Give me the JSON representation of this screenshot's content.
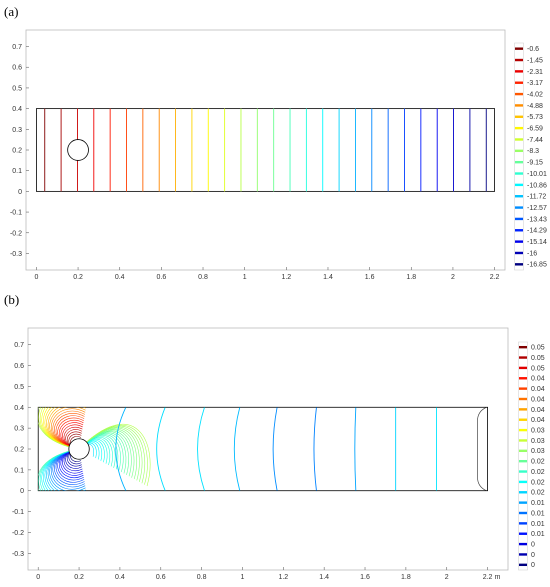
{
  "panels": [
    {
      "label": "(a)",
      "chart_data": {
        "type": "contour",
        "title": "",
        "xlabel": "",
        "ylabel": "",
        "x_unit": "",
        "xlim": [
          -0.05,
          2.25
        ],
        "ylim": [
          -0.38,
          0.78
        ],
        "x_ticks": [
          "0",
          "0.2",
          "0.4",
          "0.6",
          "0.8",
          "1",
          "1.2",
          "1.4",
          "1.6",
          "1.8",
          "2",
          "2.2"
        ],
        "y_ticks": [
          "-0.3",
          "-0.2",
          "-0.1",
          "0",
          "0.1",
          "0.2",
          "0.3",
          "0.4",
          "0.5",
          "0.6",
          "0.7"
        ],
        "domain": {
          "x": [
            0,
            2.2
          ],
          "y": [
            0,
            0.4
          ]
        },
        "obstacle": {
          "cx": 0.2,
          "cy": 0.2,
          "r": 0.05
        },
        "colorbar_labels": [
          "-0.6",
          "-1.45",
          "-2.31",
          "-3.17",
          "-4.02",
          "-4.88",
          "-5.73",
          "-6.59",
          "-7.44",
          "-8.3",
          "-9.15",
          "-10.01",
          "-10.86",
          "-11.72",
          "-12.57",
          "-13.43",
          "-14.29",
          "-15.14",
          "-16",
          "-16.85"
        ],
        "levels": 28,
        "contour_lines": "vertical, evenly spaced"
      }
    },
    {
      "label": "(b)",
      "chart_data": {
        "type": "contour",
        "title": "",
        "xlabel": "",
        "ylabel": "",
        "x_unit": "m",
        "xlim": [
          -0.05,
          2.3
        ],
        "ylim": [
          -0.38,
          0.78
        ],
        "x_ticks": [
          "0",
          "0.2",
          "0.4",
          "0.6",
          "0.8",
          "1",
          "1.2",
          "1.4",
          "1.6",
          "1.8",
          "2",
          "2.2"
        ],
        "y_ticks": [
          "-0.3",
          "-0.2",
          "-0.1",
          "0",
          "0.1",
          "0.2",
          "0.3",
          "0.4",
          "0.5",
          "0.6",
          "0.7"
        ],
        "domain": {
          "x": [
            0,
            2.2
          ],
          "y": [
            0,
            0.4
          ]
        },
        "obstacle": {
          "cx": 0.2,
          "cy": 0.2,
          "r": 0.05
        },
        "colorbar_labels": [
          "0.05",
          "0.05",
          "0.05",
          "0.04",
          "0.04",
          "0.04",
          "0.04",
          "0.04",
          "0.03",
          "0.03",
          "0.03",
          "0.02",
          "0.02",
          "0.02",
          "0.02",
          "0.01",
          "0.01",
          "0.01",
          "0.01",
          "0",
          "0",
          "0"
        ],
        "far_field_lines_x": [
          0.38,
          0.58,
          0.78,
          0.96,
          1.15,
          1.35,
          1.55,
          1.75,
          1.95
        ]
      }
    }
  ]
}
